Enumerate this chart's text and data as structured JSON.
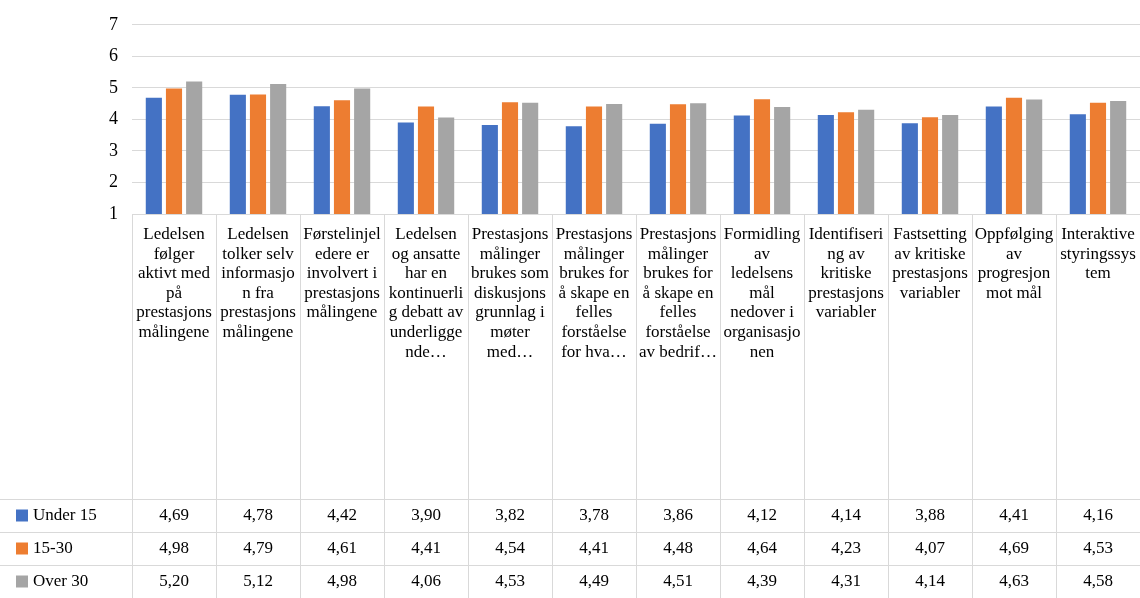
{
  "chart_data": {
    "type": "bar",
    "categories": [
      "Ledelsen følger aktivt med på prestasjonsmålingene",
      "Ledelsen tolker selv informasjon fra prestasjonsmålingene",
      "Førstelinjeledere er involvert i prestasjonsmålingene",
      "Ledelsen og ansatte har en kontinuerlig debatt av underliggende…",
      "Prestasjonsmålinger brukes som diskusjonsgrunnlag i møter med…",
      "Prestasjonsmålinger brukes for å skape en felles forståelse for hva…",
      "Prestasjonsmålinger brukes for å skape en felles forståelse av bedrif…",
      "Formidling av ledelsens mål nedover i organisasjonen",
      "Identifisering av kritiske prestasjonsvariabler",
      "Fastsetting av kritiske prestasjonsvariabler",
      "Oppfølging av progresjon mot mål",
      "Interaktive styringssystem"
    ],
    "series": [
      {
        "name": "Under 15",
        "color": "#4472c4",
        "values": [
          4.69,
          4.78,
          4.42,
          3.9,
          3.82,
          3.78,
          3.86,
          4.12,
          4.14,
          3.88,
          4.41,
          4.16
        ],
        "value_labels": [
          "4,69",
          "4,78",
          "4,42",
          "3,90",
          "3,82",
          "3,78",
          "3,86",
          "4,12",
          "4,14",
          "3,88",
          "4,41",
          "4,16"
        ]
      },
      {
        "name": "15-30",
        "color": "#ed7d31",
        "values": [
          4.98,
          4.79,
          4.61,
          4.41,
          4.54,
          4.41,
          4.48,
          4.64,
          4.23,
          4.07,
          4.69,
          4.53
        ],
        "value_labels": [
          "4,98",
          "4,79",
          "4,61",
          "4,41",
          "4,54",
          "4,41",
          "4,48",
          "4,64",
          "4,23",
          "4,07",
          "4,69",
          "4,53"
        ]
      },
      {
        "name": "Over 30",
        "color": "#a5a5a5",
        "values": [
          5.2,
          5.12,
          4.98,
          4.06,
          4.53,
          4.49,
          4.51,
          4.39,
          4.31,
          4.14,
          4.63,
          4.58
        ],
        "value_labels": [
          "5,20",
          "5,12",
          "4,98",
          "4,06",
          "4,53",
          "4,49",
          "4,51",
          "4,39",
          "4,31",
          "4,14",
          "4,63",
          "4,58"
        ]
      }
    ],
    "ylim": [
      1,
      7
    ],
    "yticks": [
      1,
      2,
      3,
      4,
      5,
      6,
      7
    ],
    "grid": true,
    "legend": "bottom"
  }
}
